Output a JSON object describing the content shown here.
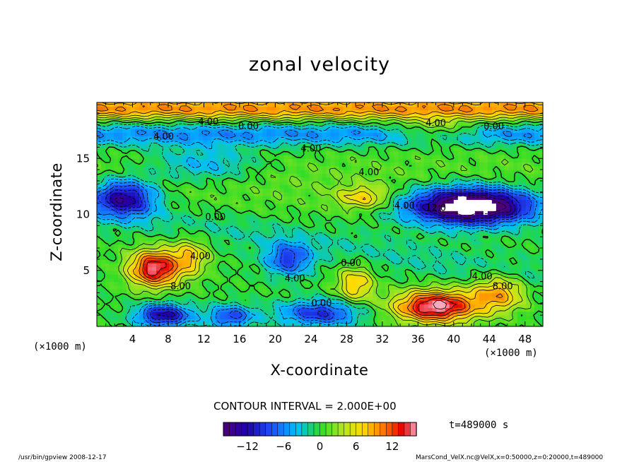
{
  "chart_data": {
    "type": "heatmap",
    "title": "zonal velocity",
    "xlabel": "X-coordinate",
    "ylabel": "Z-coordinate",
    "x_unit_left": "(×1000 m)",
    "x_unit_right": "(×1000 m)",
    "xlim": [
      0,
      50
    ],
    "ylim": [
      0,
      20
    ],
    "x_ticks": [
      4,
      8,
      12,
      16,
      20,
      24,
      28,
      32,
      36,
      40,
      44,
      48
    ],
    "y_ticks": [
      5,
      10,
      15
    ],
    "contour_interval_label": "CONTOUR INTERVAL = 2.000E+00",
    "time_label": "t=489000 s",
    "colorbar": {
      "min": -16,
      "max": 16,
      "step": 1,
      "tick_values": [
        -12,
        -6,
        0,
        6,
        12
      ],
      "tick_labels": [
        "−12",
        "−6",
        "0",
        "6",
        "12"
      ]
    },
    "contour_labels": [
      {
        "x": 12.5,
        "z": 18.0,
        "text": "4.00"
      },
      {
        "x": 7.5,
        "z": 16.7,
        "text": "4.00"
      },
      {
        "x": 17.0,
        "z": 17.6,
        "text": "0.00"
      },
      {
        "x": 24.0,
        "z": 15.6,
        "text": "4.00"
      },
      {
        "x": 30.5,
        "z": 13.5,
        "text": "4.00"
      },
      {
        "x": 38.0,
        "z": 17.9,
        "text": "4.00"
      },
      {
        "x": 44.5,
        "z": 17.6,
        "text": "0.00"
      },
      {
        "x": 13.3,
        "z": 9.5,
        "text": "0.00"
      },
      {
        "x": 11.6,
        "z": 6.0,
        "text": "4.00"
      },
      {
        "x": 9.4,
        "z": 3.3,
        "text": "8.00"
      },
      {
        "x": 22.2,
        "z": 4.0,
        "text": "4.00"
      },
      {
        "x": 25.2,
        "z": 1.8,
        "text": "0.00"
      },
      {
        "x": 28.5,
        "z": 5.4,
        "text": "0.00"
      },
      {
        "x": 34.5,
        "z": 10.5,
        "text": "4.00"
      },
      {
        "x": 38.0,
        "z": 10.3,
        "text": "12.0"
      },
      {
        "x": 43.2,
        "z": 4.2,
        "text": "4.00"
      },
      {
        "x": 45.5,
        "z": 3.3,
        "text": "8.00"
      }
    ]
  },
  "footer": {
    "left": "/usr/bin/gpview   2008-12-17",
    "right": "MarsCond_VelX.nc@VelX,x=0:50000,z=0:20000,t=489000"
  }
}
